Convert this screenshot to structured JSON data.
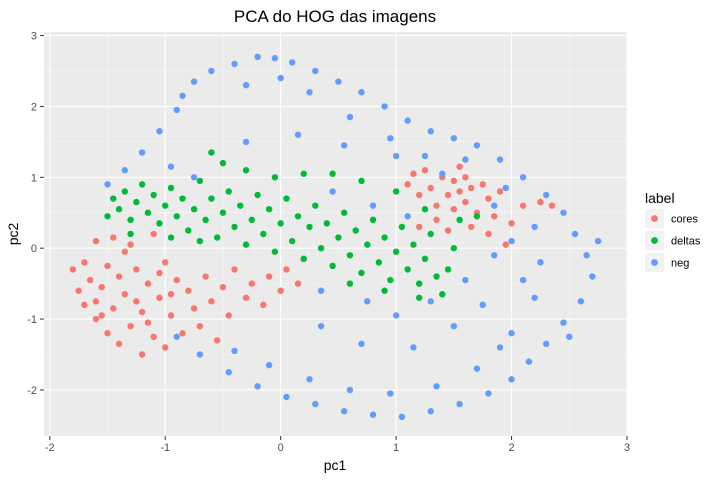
{
  "chart_data": {
    "type": "scatter",
    "title": "PCA do HOG das imagens",
    "xlabel": "pc1",
    "ylabel": "pc2",
    "xlim": [
      -2.05,
      3.0
    ],
    "ylim": [
      -2.65,
      3.05
    ],
    "x_ticks": [
      -2,
      -1,
      0,
      1,
      2,
      3
    ],
    "y_ticks": [
      -2,
      -1,
      0,
      1,
      2,
      3
    ],
    "x_tick_labels": [
      "-2",
      "-1",
      "0",
      "1",
      "2",
      "3"
    ],
    "y_tick_labels": [
      "-2",
      "-1",
      "0",
      "1",
      "2",
      "3"
    ],
    "grid": true,
    "legend": {
      "title": "label",
      "position": "right",
      "entries": [
        "cores",
        "deltas",
        "neg"
      ]
    },
    "colors": {
      "panel_bg": "#ebebeb",
      "grid": "#ffffff",
      "cores": "#F8766D",
      "deltas": "#00BA38",
      "neg": "#619CFF"
    },
    "series": [
      {
        "name": "cores",
        "points": [
          [
            -1.8,
            -0.3
          ],
          [
            -1.75,
            -0.6
          ],
          [
            -1.7,
            -0.2
          ],
          [
            -1.7,
            -0.8
          ],
          [
            -1.65,
            -0.45
          ],
          [
            -1.6,
            0.1
          ],
          [
            -1.6,
            -1.0
          ],
          [
            -1.55,
            -0.55
          ],
          [
            -1.5,
            -0.25
          ],
          [
            -1.5,
            -1.2
          ],
          [
            -1.45,
            0.15
          ],
          [
            -1.45,
            -0.85
          ],
          [
            -1.4,
            -0.4
          ],
          [
            -1.4,
            -1.35
          ],
          [
            -1.35,
            -0.65
          ],
          [
            -1.3,
            0.05
          ],
          [
            -1.3,
            -1.1
          ],
          [
            -1.25,
            -0.3
          ],
          [
            -1.2,
            -0.9
          ],
          [
            -1.2,
            -1.5
          ],
          [
            -1.15,
            -0.5
          ],
          [
            -1.1,
            0.2
          ],
          [
            -1.1,
            -1.25
          ],
          [
            -1.05,
            -0.7
          ],
          [
            -1.0,
            -0.2
          ],
          [
            -1.0,
            -1.4
          ],
          [
            -0.95,
            -0.95
          ],
          [
            -0.9,
            -0.45
          ],
          [
            -0.85,
            -1.2
          ],
          [
            -0.8,
            -0.6
          ],
          [
            -0.75,
            -0.85
          ],
          [
            -0.7,
            -1.1
          ],
          [
            -0.65,
            -0.4
          ],
          [
            -0.6,
            -0.75
          ],
          [
            -0.5,
            -0.55
          ],
          [
            -0.45,
            -0.95
          ],
          [
            -0.4,
            -0.3
          ],
          [
            -0.3,
            -0.7
          ],
          [
            -0.25,
            -0.5
          ],
          [
            -0.15,
            -0.8
          ],
          [
            -0.1,
            -0.4
          ],
          [
            0.0,
            -0.6
          ],
          [
            0.05,
            -0.3
          ],
          [
            0.15,
            -0.5
          ],
          [
            0.2,
            -0.15
          ],
          [
            -0.55,
            -1.3
          ],
          [
            -1.6,
            -0.75
          ],
          [
            -1.35,
            -0.05
          ],
          [
            -1.25,
            -0.75
          ],
          [
            -1.05,
            -0.35
          ],
          [
            -0.95,
            -0.65
          ],
          [
            -1.55,
            -0.95
          ],
          [
            -1.15,
            -1.05
          ],
          [
            1.15,
            1.05
          ],
          [
            1.2,
            0.75
          ],
          [
            1.25,
            1.1
          ],
          [
            1.3,
            0.85
          ],
          [
            1.35,
            0.6
          ],
          [
            1.4,
            1.0
          ],
          [
            1.45,
            0.75
          ],
          [
            1.5,
            0.95
          ],
          [
            1.5,
            0.55
          ],
          [
            1.55,
            0.8
          ],
          [
            1.6,
            1.0
          ],
          [
            1.6,
            0.65
          ],
          [
            1.65,
            0.85
          ],
          [
            1.7,
            0.5
          ],
          [
            1.75,
            0.9
          ],
          [
            1.8,
            0.7
          ],
          [
            1.85,
            0.45
          ],
          [
            1.9,
            0.8
          ],
          [
            2.0,
            0.35
          ],
          [
            2.1,
            0.6
          ],
          [
            2.25,
            0.65
          ],
          [
            2.35,
            0.6
          ],
          [
            1.1,
            0.9
          ],
          [
            1.2,
            0.3
          ],
          [
            1.35,
            0.4
          ],
          [
            1.45,
            0.25
          ],
          [
            1.65,
            0.3
          ],
          [
            1.8,
            0.2
          ],
          [
            1.95,
            0.05
          ],
          [
            1.55,
            1.15
          ]
        ]
      },
      {
        "name": "deltas",
        "points": [
          [
            -1.45,
            0.7
          ],
          [
            -1.4,
            0.55
          ],
          [
            -1.35,
            0.8
          ],
          [
            -1.3,
            0.4
          ],
          [
            -1.25,
            0.65
          ],
          [
            -1.2,
            0.9
          ],
          [
            -1.15,
            0.5
          ],
          [
            -1.1,
            0.75
          ],
          [
            -1.05,
            0.35
          ],
          [
            -1.0,
            0.6
          ],
          [
            -0.95,
            0.85
          ],
          [
            -0.9,
            0.45
          ],
          [
            -0.85,
            0.7
          ],
          [
            -0.8,
            0.25
          ],
          [
            -0.75,
            0.55
          ],
          [
            -0.7,
            0.95
          ],
          [
            -0.65,
            0.4
          ],
          [
            -0.6,
            0.7
          ],
          [
            -0.55,
            0.15
          ],
          [
            -0.5,
            0.5
          ],
          [
            -0.45,
            0.8
          ],
          [
            -0.4,
            0.3
          ],
          [
            -0.35,
            0.6
          ],
          [
            -0.3,
            0.05
          ],
          [
            -0.25,
            0.4
          ],
          [
            -0.2,
            0.75
          ],
          [
            -0.15,
            0.2
          ],
          [
            -0.1,
            0.55
          ],
          [
            -0.05,
            -0.05
          ],
          [
            0.0,
            0.35
          ],
          [
            0.05,
            0.7
          ],
          [
            0.1,
            0.1
          ],
          [
            0.15,
            0.45
          ],
          [
            0.2,
            -0.15
          ],
          [
            0.25,
            0.3
          ],
          [
            0.3,
            0.6
          ],
          [
            0.35,
            0.0
          ],
          [
            0.4,
            0.35
          ],
          [
            0.45,
            -0.25
          ],
          [
            0.5,
            0.15
          ],
          [
            0.55,
            0.5
          ],
          [
            0.6,
            -0.1
          ],
          [
            0.65,
            0.25
          ],
          [
            0.7,
            -0.35
          ],
          [
            0.75,
            0.05
          ],
          [
            0.8,
            0.4
          ],
          [
            0.85,
            -0.2
          ],
          [
            0.9,
            0.15
          ],
          [
            0.95,
            -0.45
          ],
          [
            1.0,
            -0.05
          ],
          [
            1.05,
            0.3
          ],
          [
            1.1,
            -0.3
          ],
          [
            1.15,
            0.05
          ],
          [
            1.2,
            -0.5
          ],
          [
            1.25,
            -0.15
          ],
          [
            1.3,
            0.2
          ],
          [
            1.35,
            -0.4
          ],
          [
            1.4,
            -0.65
          ],
          [
            1.45,
            -0.3
          ],
          [
            1.5,
            0.0
          ],
          [
            -0.6,
            1.35
          ],
          [
            -0.5,
            1.2
          ],
          [
            -0.3,
            1.1
          ],
          [
            -0.05,
            1.0
          ],
          [
            0.2,
            1.05
          ],
          [
            0.45,
            1.05
          ],
          [
            0.7,
            0.95
          ],
          [
            1.0,
            0.8
          ],
          [
            1.25,
            0.55
          ],
          [
            1.55,
            0.4
          ],
          [
            1.7,
            0.45
          ],
          [
            -1.5,
            0.45
          ],
          [
            -1.3,
            0.2
          ],
          [
            -0.95,
            0.15
          ],
          [
            -0.7,
            0.1
          ],
          [
            0.6,
            -0.5
          ],
          [
            0.9,
            -0.6
          ],
          [
            1.2,
            -0.7
          ]
        ]
      },
      {
        "name": "neg",
        "points": [
          [
            -0.75,
            2.35
          ],
          [
            -0.6,
            2.5
          ],
          [
            -0.4,
            2.6
          ],
          [
            -0.2,
            2.7
          ],
          [
            -0.05,
            2.68
          ],
          [
            0.1,
            2.62
          ],
          [
            0.3,
            2.5
          ],
          [
            0.5,
            2.35
          ],
          [
            0.7,
            2.2
          ],
          [
            0.9,
            2.0
          ],
          [
            1.1,
            1.8
          ],
          [
            1.3,
            1.65
          ],
          [
            1.5,
            1.55
          ],
          [
            1.7,
            1.45
          ],
          [
            1.9,
            1.25
          ],
          [
            2.1,
            1.0
          ],
          [
            2.3,
            0.75
          ],
          [
            2.45,
            0.5
          ],
          [
            2.55,
            0.2
          ],
          [
            2.65,
            -0.1
          ],
          [
            2.7,
            -0.4
          ],
          [
            2.6,
            -0.75
          ],
          [
            2.45,
            -1.05
          ],
          [
            2.3,
            -1.35
          ],
          [
            2.15,
            -1.6
          ],
          [
            2.0,
            -1.85
          ],
          [
            1.8,
            -2.05
          ],
          [
            1.55,
            -2.2
          ],
          [
            1.3,
            -2.3
          ],
          [
            1.05,
            -2.38
          ],
          [
            0.8,
            -2.35
          ],
          [
            0.55,
            -2.3
          ],
          [
            0.3,
            -2.2
          ],
          [
            0.05,
            -2.1
          ],
          [
            -0.2,
            -1.95
          ],
          [
            -0.45,
            -1.75
          ],
          [
            -0.7,
            -1.5
          ],
          [
            -0.9,
            -1.25
          ],
          [
            -1.2,
            1.35
          ],
          [
            -1.05,
            1.65
          ],
          [
            -0.9,
            1.95
          ],
          [
            -0.85,
            2.15
          ],
          [
            -1.35,
            1.1
          ],
          [
            -1.5,
            0.9
          ],
          [
            -0.3,
            2.3
          ],
          [
            0.0,
            2.4
          ],
          [
            0.25,
            2.2
          ],
          [
            0.6,
            1.85
          ],
          [
            0.95,
            1.55
          ],
          [
            1.25,
            1.3
          ],
          [
            1.6,
            1.25
          ],
          [
            1.95,
            0.85
          ],
          [
            2.2,
            0.3
          ],
          [
            2.25,
            -0.2
          ],
          [
            2.2,
            -0.7
          ],
          [
            2.0,
            -1.2
          ],
          [
            1.7,
            -1.7
          ],
          [
            1.35,
            -1.95
          ],
          [
            0.95,
            -2.05
          ],
          [
            0.6,
            -2.0
          ],
          [
            0.25,
            -1.85
          ],
          [
            -0.1,
            -1.65
          ],
          [
            -0.4,
            -1.45
          ],
          [
            1.0,
            -0.95
          ],
          [
            1.3,
            -0.75
          ],
          [
            1.6,
            -0.45
          ],
          [
            1.85,
            -0.1
          ],
          [
            0.35,
            -1.1
          ],
          [
            0.7,
            -1.35
          ],
          [
            1.15,
            -1.4
          ],
          [
            1.5,
            -1.1
          ],
          [
            1.75,
            -0.8
          ],
          [
            -0.3,
            1.5
          ],
          [
            0.15,
            1.6
          ],
          [
            0.55,
            1.45
          ],
          [
            1.0,
            1.3
          ],
          [
            1.4,
            1.05
          ],
          [
            1.85,
            0.6
          ],
          [
            2.0,
            0.1
          ],
          [
            2.1,
            -0.45
          ],
          [
            0.45,
            0.8
          ],
          [
            0.8,
            0.6
          ],
          [
            1.1,
            0.45
          ],
          [
            -0.75,
            1.0
          ],
          [
            -0.95,
            1.15
          ],
          [
            0.35,
            -0.6
          ],
          [
            0.75,
            -0.75
          ],
          [
            1.9,
            -1.4
          ],
          [
            2.5,
            -1.25
          ],
          [
            2.75,
            0.1
          ]
        ]
      }
    ]
  }
}
